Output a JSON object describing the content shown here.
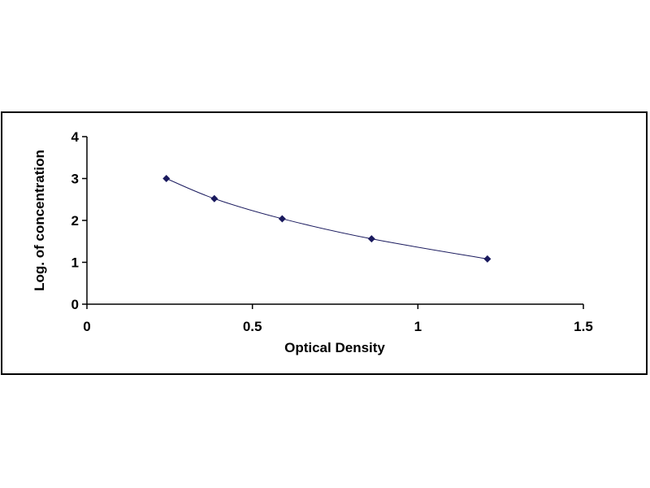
{
  "chart_data": {
    "type": "scatter",
    "title": "",
    "xlabel": "Optical Density",
    "ylabel": "Log. of concentration",
    "xlim": [
      0,
      1.5
    ],
    "ylim": [
      0,
      4
    ],
    "x_ticks": [
      0,
      0.5,
      1,
      1.5
    ],
    "y_ticks": [
      0,
      1,
      2,
      3,
      4
    ],
    "x_tick_labels": [
      "0",
      "0.5",
      "1",
      "1.5"
    ],
    "y_tick_labels": [
      "0",
      "1",
      "2",
      "3",
      "4"
    ],
    "grid": false,
    "legend": "none",
    "marker": "diamond",
    "trendline": "smooth",
    "series": [
      {
        "x": [
          0.24,
          0.385,
          0.59,
          0.86,
          1.21
        ],
        "y": [
          3.0,
          2.52,
          2.04,
          1.56,
          1.08
        ],
        "color": "#1a1a5e"
      }
    ],
    "line_color": "#1a1a5e"
  }
}
